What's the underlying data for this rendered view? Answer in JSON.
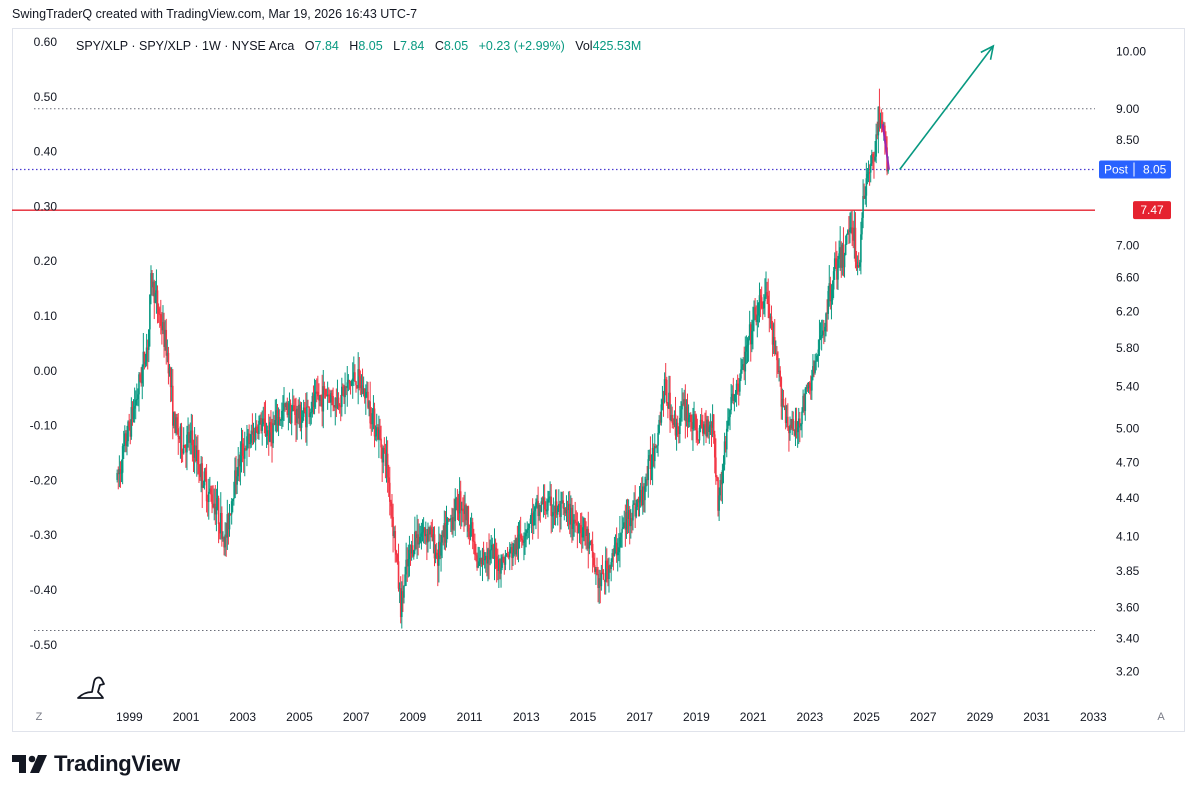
{
  "header": {
    "text": "SwingTraderQ created with TradingView.com, Mar 19, 2026 16:43 UTC-7"
  },
  "legend": {
    "symbol": "SPY/XLP · SPY/XLP · 1W · NYSE Arca",
    "o_label": "O",
    "o_value": "7.84",
    "h_label": "H",
    "h_value": "8.05",
    "l_label": "L",
    "l_value": "7.84",
    "c_label": "C",
    "c_value": "8.05",
    "change": "+0.23 (+2.99%)",
    "vol_label": "Vol",
    "vol_value": "425.53M"
  },
  "colors": {
    "up": "#089981",
    "down": "#f23645",
    "resistance": "#e5222f",
    "post": "#2962ff",
    "arrow": "#089981",
    "peak": "#9c27b0"
  },
  "buttons": {
    "log_scale": "Z",
    "auto_scale": "A"
  },
  "footer": {
    "brand": "TradingView",
    "logo_icon": "tradingview-logo-icon"
  },
  "chart_data": {
    "type": "candlestick",
    "title": "",
    "timeframe": "1W",
    "xlim": [
      1997.9,
      2034.9
    ],
    "x_ticks": [
      "1999",
      "2001",
      "2003",
      "2005",
      "2007",
      "2009",
      "2011",
      "2013",
      "2015",
      "2017",
      "2019",
      "2021",
      "2023",
      "2025",
      "2027",
      "2029",
      "2031",
      "2033"
    ],
    "right_axis": {
      "scale": "log",
      "ylim": [
        3.11,
        10.25
      ],
      "ticks": [
        "10.00",
        "9.00",
        "8.50",
        "7.00",
        "6.60",
        "6.20",
        "5.80",
        "5.40",
        "5.00",
        "4.70",
        "4.40",
        "4.10",
        "3.85",
        "3.60",
        "3.40",
        "3.20"
      ]
    },
    "left_axis": {
      "scale": "log-deviation",
      "ticks": [
        "0.60",
        "0.50",
        "0.40",
        "0.30",
        "0.20",
        "0.10",
        "0.00",
        "-0.10",
        "-0.20",
        "-0.30",
        "-0.40",
        "-0.50"
      ]
    },
    "series": [
      {
        "name": "SPY/XLP",
        "points": [
          [
            1999.0,
            4.55
          ],
          [
            1999.3,
            4.88
          ],
          [
            1999.7,
            5.32
          ],
          [
            2000.1,
            5.9
          ],
          [
            2000.2,
            6.6
          ],
          [
            2000.5,
            6.15
          ],
          [
            2000.8,
            5.7
          ],
          [
            2001.0,
            5.05
          ],
          [
            2001.3,
            4.85
          ],
          [
            2001.6,
            4.9
          ],
          [
            2001.9,
            4.65
          ],
          [
            2002.2,
            4.45
          ],
          [
            2002.5,
            4.35
          ],
          [
            2002.8,
            4.05
          ],
          [
            2003.1,
            4.5
          ],
          [
            2003.4,
            4.8
          ],
          [
            2003.7,
            4.9
          ],
          [
            2004.0,
            5.05
          ],
          [
            2004.4,
            4.95
          ],
          [
            2004.7,
            5.1
          ],
          [
            2005.0,
            5.2
          ],
          [
            2005.5,
            5.1
          ],
          [
            2006.0,
            5.25
          ],
          [
            2006.4,
            5.35
          ],
          [
            2006.7,
            5.25
          ],
          [
            2007.0,
            5.35
          ],
          [
            2007.4,
            5.5
          ],
          [
            2007.8,
            5.3
          ],
          [
            2008.2,
            4.95
          ],
          [
            2008.5,
            4.7
          ],
          [
            2008.8,
            4.05
          ],
          [
            2009.0,
            3.6
          ],
          [
            2009.2,
            3.85
          ],
          [
            2009.5,
            4.1
          ],
          [
            2010.0,
            4.15
          ],
          [
            2010.3,
            3.95
          ],
          [
            2010.7,
            4.2
          ],
          [
            2011.1,
            4.4
          ],
          [
            2011.5,
            4.15
          ],
          [
            2011.7,
            3.85
          ],
          [
            2012.0,
            4.0
          ],
          [
            2012.5,
            3.9
          ],
          [
            2013.0,
            4.0
          ],
          [
            2013.5,
            4.2
          ],
          [
            2014.0,
            4.35
          ],
          [
            2014.5,
            4.3
          ],
          [
            2015.0,
            4.25
          ],
          [
            2015.5,
            4.15
          ],
          [
            2016.0,
            3.75
          ],
          [
            2016.5,
            3.95
          ],
          [
            2017.0,
            4.25
          ],
          [
            2017.5,
            4.4
          ],
          [
            2018.0,
            4.9
          ],
          [
            2018.3,
            5.4
          ],
          [
            2018.7,
            5.0
          ],
          [
            2019.0,
            5.2
          ],
          [
            2019.5,
            4.95
          ],
          [
            2020.0,
            5.1
          ],
          [
            2020.2,
            4.35
          ],
          [
            2020.6,
            5.2
          ],
          [
            2021.0,
            5.5
          ],
          [
            2021.5,
            6.15
          ],
          [
            2021.9,
            6.4
          ],
          [
            2022.2,
            5.7
          ],
          [
            2022.6,
            5.1
          ],
          [
            2022.9,
            4.95
          ],
          [
            2023.3,
            5.3
          ],
          [
            2023.7,
            5.7
          ],
          [
            2024.0,
            6.2
          ],
          [
            2024.3,
            6.7
          ],
          [
            2024.6,
            6.85
          ],
          [
            2024.9,
            7.4
          ],
          [
            2025.15,
            6.6
          ],
          [
            2025.3,
            7.7
          ],
          [
            2025.6,
            8.1
          ],
          [
            2025.9,
            8.95
          ],
          [
            2026.0,
            8.75
          ],
          [
            2026.15,
            8.1
          ],
          [
            2026.22,
            8.05
          ]
        ]
      }
    ],
    "horizontal_lines": [
      {
        "label": "7.47",
        "value": 7.47,
        "style": "solid"
      },
      {
        "label": "Post",
        "value": 8.05,
        "value_label": "8.05",
        "style": "dotted"
      },
      {
        "value": 9.0,
        "style": "dotted"
      },
      {
        "value": 3.45,
        "style": "dotted"
      }
    ],
    "projection_arrow": {
      "from": [
        2026.6,
        8.05
      ],
      "to": [
        2029.9,
        10.1
      ]
    },
    "annotations": []
  }
}
